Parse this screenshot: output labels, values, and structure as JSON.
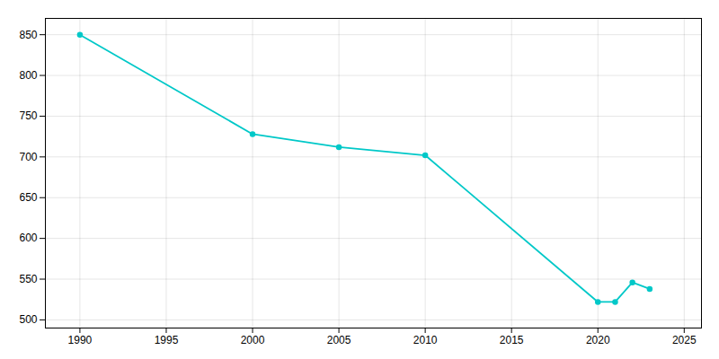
{
  "chart_data": {
    "type": "line",
    "x": [
      1990,
      2000,
      2005,
      2010,
      2020,
      2021,
      2022,
      2023
    ],
    "values": [
      850,
      728,
      712,
      702,
      522,
      522,
      546,
      538
    ],
    "color": "#00C8C8",
    "marker": "circle",
    "xlim": [
      1988,
      2026
    ],
    "ylim": [
      490,
      870
    ],
    "xticks": [
      1990,
      1995,
      2000,
      2005,
      2010,
      2015,
      2020,
      2025
    ],
    "yticks": [
      500,
      550,
      600,
      650,
      700,
      750,
      800,
      850
    ],
    "grid": true
  }
}
